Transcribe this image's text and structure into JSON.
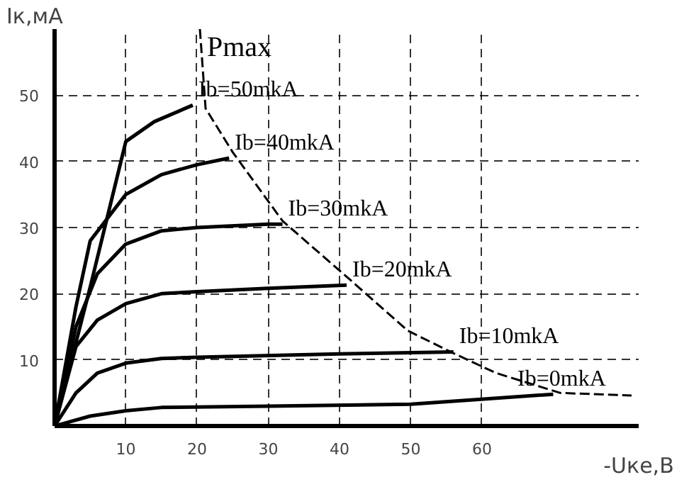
{
  "chart_data": {
    "type": "line",
    "xlabel": "-Uке,В",
    "ylabel": "Iк,мА",
    "xlim": [
      0,
      82
    ],
    "ylim": [
      0,
      60
    ],
    "xticks": [
      10,
      20,
      30,
      40,
      50,
      60
    ],
    "yticks": [
      10,
      20,
      30,
      40,
      50
    ],
    "grid": true,
    "marker": "none",
    "line_style": "solid",
    "series": [
      {
        "name": "Ib=50mkA",
        "color": "#000000",
        "x": [
          0,
          5,
          10,
          14,
          19.4
        ],
        "values": [
          0,
          21,
          43,
          46,
          48.5
        ]
      },
      {
        "name": "Ib=40mkA",
        "color": "#000000",
        "x": [
          0,
          3,
          5,
          10,
          15,
          20,
          24.5
        ],
        "values": [
          0,
          18,
          28,
          35,
          38,
          39.5,
          40.5
        ]
      },
      {
        "name": "Ib=30mkA",
        "color": "#000000",
        "x": [
          0,
          3,
          6,
          10,
          15,
          20,
          30,
          32
        ],
        "values": [
          0,
          15,
          23,
          27.5,
          29.5,
          30,
          30.5,
          30.5
        ]
      },
      {
        "name": "Ib=20mkA",
        "color": "#000000",
        "x": [
          0,
          3,
          6,
          10,
          15,
          20,
          30,
          41
        ],
        "values": [
          0,
          12,
          16,
          18.5,
          20,
          20.3,
          20.8,
          21.3
        ]
      },
      {
        "name": "Ib=10mkA",
        "color": "#000000",
        "x": [
          0,
          3,
          6,
          10,
          15,
          20,
          40,
          56
        ],
        "values": [
          0,
          5,
          8,
          9.5,
          10.2,
          10.4,
          10.9,
          11.2
        ]
      },
      {
        "name": "Ib=0mkA",
        "color": "#000000",
        "x": [
          0,
          5,
          10,
          15,
          30,
          50,
          70
        ],
        "values": [
          0,
          1.5,
          2.3,
          2.8,
          3,
          3.3,
          4.8
        ]
      },
      {
        "name": "Pmax",
        "color": "#000000",
        "line_style": "dashed",
        "x": [
          20.4,
          21.2,
          25,
          32,
          41.6,
          49.6,
          56,
          62,
          71,
          81
        ],
        "values": [
          60,
          48,
          41.4,
          31,
          22,
          14.4,
          11,
          8,
          5,
          4.6
        ]
      }
    ]
  }
}
